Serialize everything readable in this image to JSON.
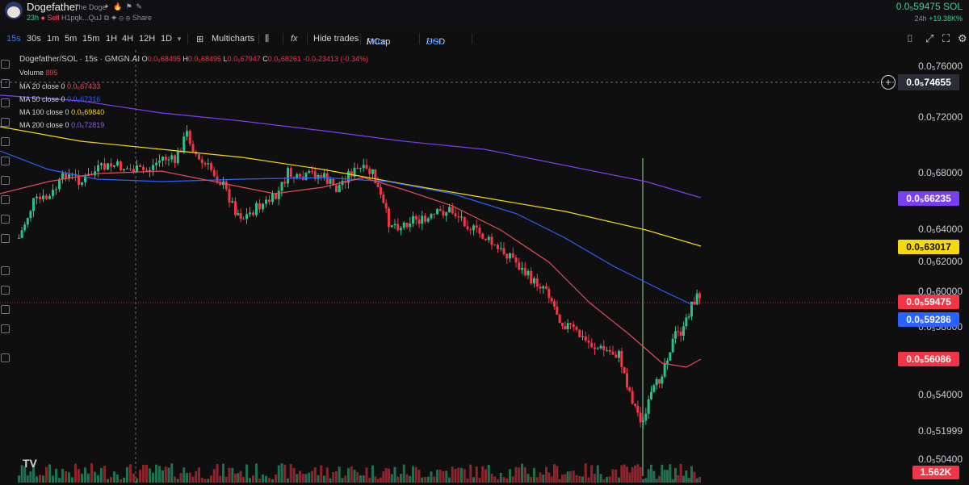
{
  "header": {
    "token_name": "Dogefather",
    "token_subtitle": "The Doge",
    "flags": "✦ 🔥 ⚑ ✎",
    "age": "23h",
    "side": "Sell",
    "address": "H1pqk...QuJ",
    "address_icons": "⧉ ✦ ⊖ ⊕",
    "share_label": "Share",
    "price": "0.0₅59475 SOL",
    "change_label": "24h",
    "change_value": "+19.38K%"
  },
  "toolbar": {
    "timeframes": [
      "15s",
      "30s",
      "1m",
      "5m",
      "15m",
      "1H",
      "4H",
      "12H",
      "1D"
    ],
    "active_timeframe": "15s",
    "multicharts": "Multicharts",
    "hide_trades": "Hide trades",
    "price_label": "Price",
    "mcap_label": "MCap",
    "usd_label": "USD",
    "sol_label": "SOL",
    "slash": "/"
  },
  "legend": {
    "title": "Dogefather/SOL · 15s · GMGN.AI",
    "o_label": "O",
    "o_val": "0.0₆68495",
    "h_label": "H",
    "h_val": "0.0₆68495",
    "l_label": "L",
    "l_val": "0.0₆67947",
    "c_label": "C",
    "c_val": "0.0₆68261",
    "chg": "-0.0₇23413 (-0.34%)",
    "volume_label": "Volume",
    "volume_val": "895",
    "ma20_label": "MA 20 close 0",
    "ma20_val": "0.0₆67433",
    "ma50_label": "MA 50 close 0",
    "ma50_val": "0.0₆67316",
    "ma100_label": "MA 100 close 0",
    "ma100_val": "0.0₆69840",
    "ma200_label": "MA 200 close 0",
    "ma200_val": "0.0₆72819"
  },
  "price_scale": {
    "ticks": [
      "0.0₅76000",
      "0.0₅72000",
      "0.0₅68000",
      "0.0₅64000",
      "0.0₅62000",
      "0.0₅60000",
      "0.0₅58000",
      "0.0₅54000",
      "0.0₅51999",
      "0.0₅50400"
    ],
    "crosshair_price": "0.0₅74655",
    "ma200_last": "0.0₅66235",
    "ma100_last": "0.0₅63017",
    "last_price": "0.0₅59475",
    "ma50_last": "0.0₅59286",
    "ma20_last": "0.0₅56086",
    "volume_last": "1.562K"
  },
  "colors": {
    "up": "#2fbf86",
    "down": "#f23645",
    "ma20": "#e84a5a",
    "ma50": "#2962ff",
    "ma100": "#f5d90a",
    "ma200": "#7b3ff2"
  },
  "icons": [
    "camera-icon",
    "expand-icon",
    "fullscreen-icon",
    "settings-icon",
    "tradingview-logo-icon"
  ],
  "logo_text": "TV"
}
